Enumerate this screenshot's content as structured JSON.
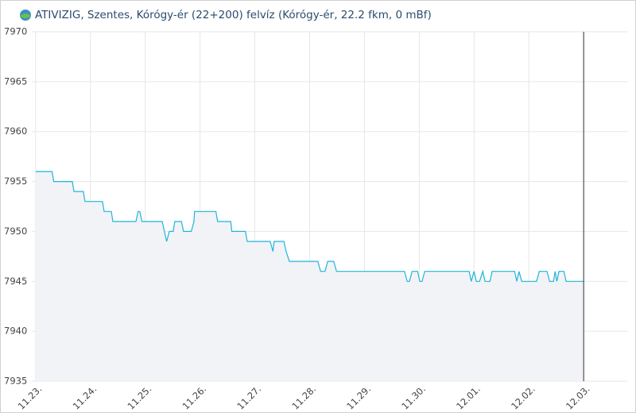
{
  "chart_data": {
    "type": "line",
    "title": "ATIVIZIG, Szentes, Kórógy-ér (22+200) felvíz (Kórógy-ér, 22.2 fkm, 0 mBf)",
    "color": "#1fb5d8",
    "fill": "#f1f3f7",
    "grid": true,
    "xlim": [
      -0.07,
      10.81
    ],
    "ylim": [
      7935,
      7970
    ],
    "yticks": [
      7935,
      7940,
      7945,
      7950,
      7955,
      7960,
      7965,
      7970
    ],
    "xticks": [
      {
        "value": 0,
        "label": "11.23."
      },
      {
        "value": 1,
        "label": "11.24."
      },
      {
        "value": 2,
        "label": "11.25."
      },
      {
        "value": 3,
        "label": "11.26."
      },
      {
        "value": 4,
        "label": "11.27."
      },
      {
        "value": 5,
        "label": "11.28."
      },
      {
        "value": 6,
        "label": "11.29."
      },
      {
        "value": 7,
        "label": "11.30."
      },
      {
        "value": 8,
        "label": "12.01."
      },
      {
        "value": 9,
        "label": "12.02."
      },
      {
        "value": 10,
        "label": "12.03."
      }
    ],
    "x": [
      0,
      0.3,
      0.33,
      0.67,
      0.7,
      0.87,
      0.9,
      1.22,
      1.25,
      1.38,
      1.41,
      1.83,
      1.87,
      1.9,
      1.94,
      2.31,
      2.35,
      2.39,
      2.44,
      2.51,
      2.54,
      2.66,
      2.7,
      2.84,
      2.89,
      2.9,
      3.29,
      3.32,
      3.56,
      3.58,
      3.83,
      3.86,
      4.28,
      4.33,
      4.35,
      4.53,
      4.57,
      4.63,
      5.15,
      5.2,
      5.28,
      5.33,
      5.44,
      5.49,
      6.73,
      6.78,
      6.82,
      6.87,
      6.97,
      7.01,
      7.05,
      7.1,
      7.91,
      7.95,
      8.0,
      8.04,
      8.1,
      8.16,
      8.2,
      8.29,
      8.33,
      8.74,
      8.78,
      8.82,
      8.87,
      9.14,
      9.19,
      9.33,
      9.38,
      9.45,
      9.48,
      9.51,
      9.55,
      9.64,
      9.68,
      10
    ],
    "values": [
      7956,
      7956,
      7955,
      7955,
      7954,
      7954,
      7953,
      7953,
      7952,
      7952,
      7951,
      7951,
      7952,
      7952,
      7951,
      7951,
      7950,
      7949,
      7950,
      7950,
      7951,
      7951,
      7950,
      7950,
      7951,
      7952,
      7952,
      7951,
      7951,
      7950,
      7950,
      7949,
      7949,
      7948,
      7949,
      7949,
      7948,
      7947,
      7947,
      7946,
      7946,
      7947,
      7947,
      7946,
      7946,
      7945,
      7945,
      7946,
      7946,
      7945,
      7945,
      7946,
      7946,
      7945,
      7946,
      7945,
      7945,
      7946,
      7945,
      7945,
      7946,
      7946,
      7945,
      7946,
      7945,
      7945,
      7946,
      7946,
      7945,
      7945,
      7946,
      7945,
      7946,
      7946,
      7945,
      7945
    ]
  }
}
